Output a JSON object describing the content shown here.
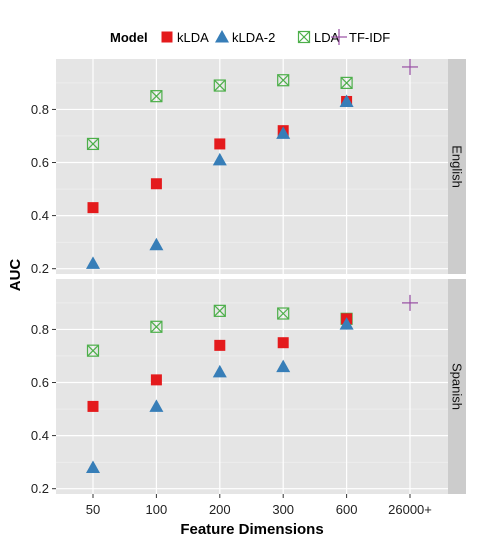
{
  "chart_data": {
    "type": "scatter",
    "xlabel": "Feature Dimensions",
    "ylabel": "AUC",
    "legend": {
      "title": "Model",
      "placement": "top"
    },
    "categories": [
      "50",
      "100",
      "200",
      "300",
      "600",
      "26000+"
    ],
    "ylim": [
      0.18,
      0.99
    ],
    "yticks": [
      "0.2",
      "0.4",
      "0.6",
      "0.8"
    ],
    "grid": true,
    "series_styles": {
      "kLDA": {
        "color": "#e41a1c",
        "marker": "square"
      },
      "kLDA-2": {
        "color": "#377eb8",
        "marker": "triangle"
      },
      "LDA": {
        "color": "#4daf4a",
        "marker": "crossed-box"
      },
      "TF-IDF": {
        "color": "#984ea3",
        "marker": "plus"
      }
    },
    "facets": [
      {
        "label": "English",
        "series": [
          {
            "name": "kLDA",
            "values": [
              0.43,
              0.52,
              0.67,
              0.72,
              0.83,
              null
            ]
          },
          {
            "name": "kLDA-2",
            "values": [
              0.22,
              0.29,
              0.61,
              0.71,
              0.83,
              null
            ]
          },
          {
            "name": "LDA",
            "values": [
              0.67,
              0.85,
              0.89,
              0.91,
              0.9,
              null
            ]
          },
          {
            "name": "TF-IDF",
            "values": [
              null,
              null,
              null,
              null,
              null,
              0.96
            ]
          }
        ]
      },
      {
        "label": "Spanish",
        "series": [
          {
            "name": "kLDA",
            "values": [
              0.51,
              0.61,
              0.74,
              0.75,
              0.84,
              null
            ]
          },
          {
            "name": "kLDA-2",
            "values": [
              0.28,
              0.51,
              0.64,
              0.66,
              0.82,
              null
            ]
          },
          {
            "name": "LDA",
            "values": [
              0.72,
              0.81,
              0.87,
              0.86,
              0.84,
              null
            ]
          },
          {
            "name": "TF-IDF",
            "values": [
              null,
              null,
              null,
              null,
              null,
              0.9
            ]
          }
        ]
      }
    ]
  }
}
